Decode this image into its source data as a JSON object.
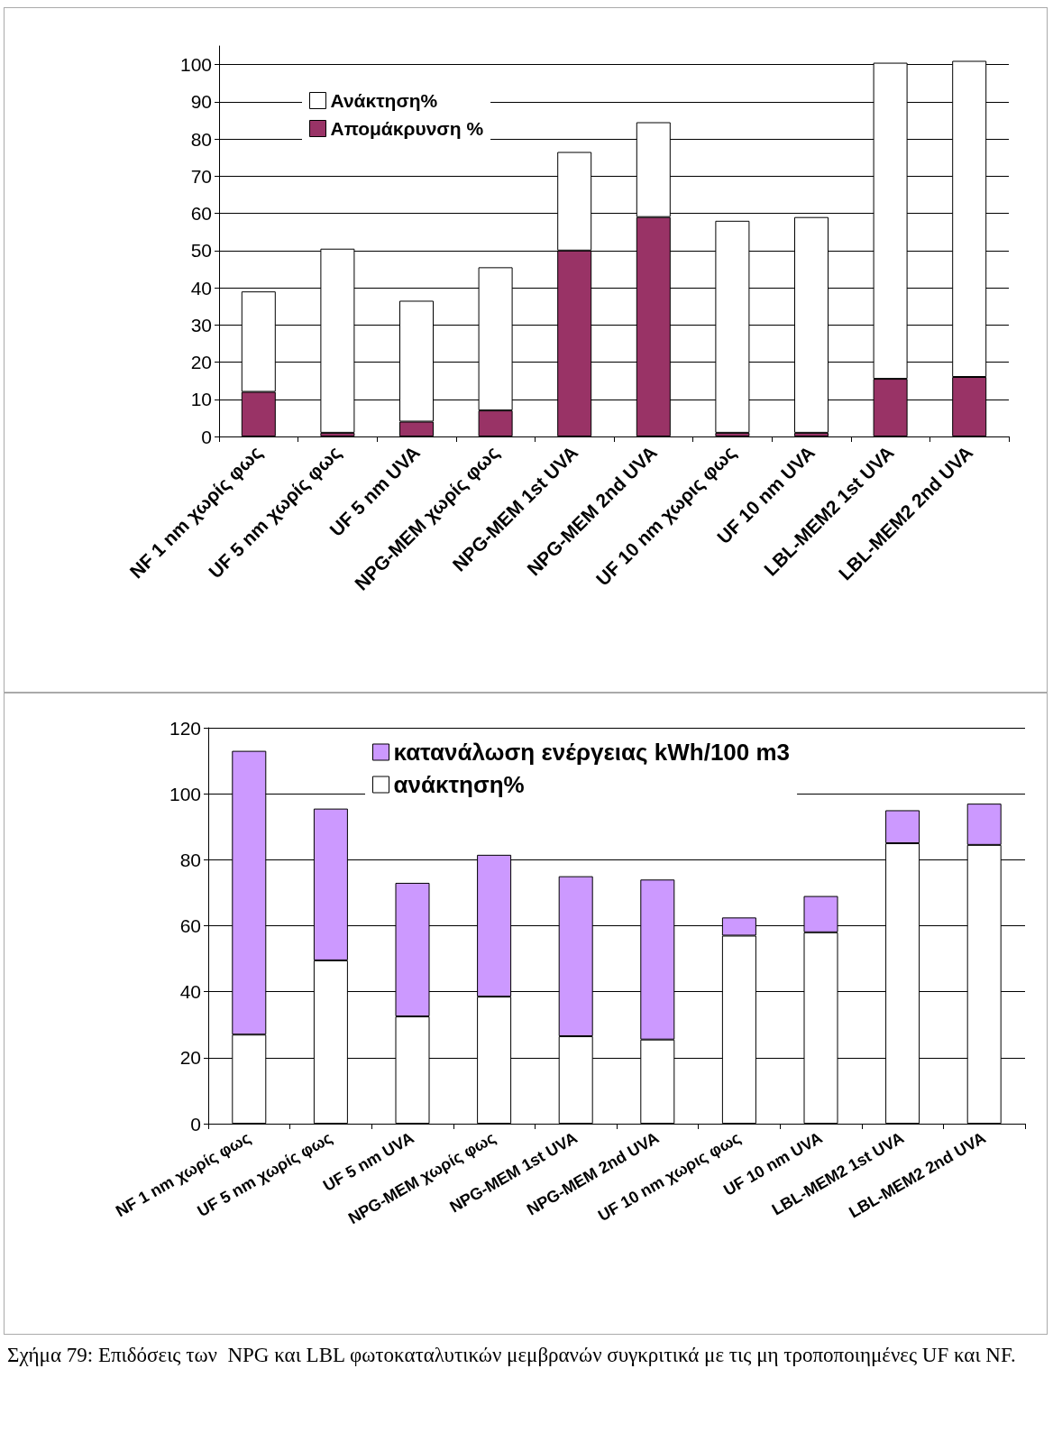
{
  "chart_data": [
    {
      "type": "bar",
      "stacked": true,
      "categories": [
        "NF 1 nm χωρίς φως",
        "UF 5 nm χωρίς φως",
        "UF 5 nm UVA",
        "NPG-MEM χωρίς φως",
        "NPG-MEM 1st UVA",
        "NPG-MEM 2nd UVA",
        "UF 10 nm χωρις φως",
        "UF 10 nm UVA",
        "LBL-MEM2 1st UVA",
        "LBL-MEM2 2nd UVA"
      ],
      "series": [
        {
          "name": "Απομάκρυνση %",
          "color": "#993366",
          "values": [
            12,
            1,
            4,
            7,
            50,
            59,
            1,
            1,
            15.5,
            16
          ]
        },
        {
          "name": "Ανάκτηση%",
          "color": "#ffffff",
          "values": [
            27,
            49.5,
            32.5,
            38.5,
            26.5,
            25.5,
            57,
            58,
            85,
            85
          ]
        }
      ],
      "ylim": [
        0,
        105
      ],
      "yticks": [
        0,
        10,
        20,
        30,
        40,
        50,
        60,
        70,
        80,
        90,
        100
      ],
      "grid": "y",
      "legend": "top left"
    },
    {
      "type": "bar",
      "stacked": true,
      "categories": [
        "NF 1 nm χωρίς φως",
        "UF 5 nm χωρίς φως",
        "UF 5 nm UVA",
        "NPG-MEM χωρίς φως",
        "NPG-MEM 1st UVA",
        "NPG-MEM 2nd UVA",
        "UF 10 nm χωρις φως",
        "UF 10 nm UVA",
        "LBL-MEM2 1st UVA",
        "LBL-MEM2 2nd UVA"
      ],
      "series": [
        {
          "name": "ανάκτηση%",
          "color": "#ffffff",
          "values": [
            27,
            49.5,
            32.5,
            38.5,
            26.5,
            25.5,
            57,
            58,
            85,
            84.5
          ]
        },
        {
          "name": "κατανάλωση ενέργειας kWh/100 m3",
          "color": "#cc99ff",
          "values": [
            86,
            46,
            40.5,
            43,
            48.5,
            48.5,
            5.5,
            11,
            10,
            12.5
          ]
        }
      ],
      "ylim": [
        0,
        120
      ],
      "yticks": [
        0,
        20,
        40,
        60,
        80,
        100,
        120
      ],
      "grid": "y",
      "legend": "top",
      "annotations": [
        "Σχήμα 79: Επιδόσεις των  NPG και LBL φωτοκαταλυτικών μεμβρανών συγκριτικά με τις μη τροποποιημένες UF και NF."
      ]
    }
  ]
}
